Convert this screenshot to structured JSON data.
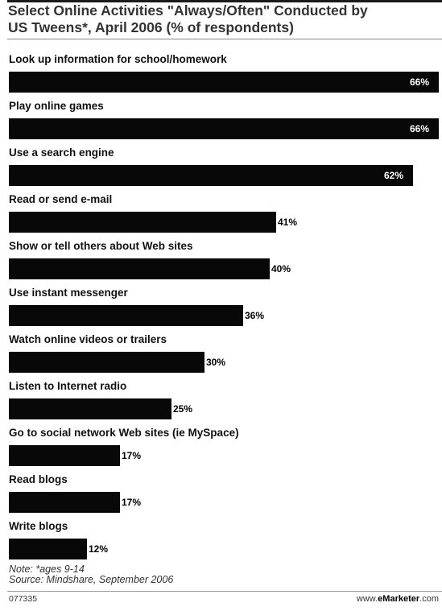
{
  "chart_data": {
    "type": "bar",
    "orientation": "horizontal",
    "title": "Select Online Activities \"Always/Often\" Conducted by\nUS Tweens*, April 2006 (% of respondents)",
    "categories": [
      "Look up information for school/homework",
      "Play online games",
      "Use a search engine",
      "Read or send e-mail",
      "Show or tell others about Web sites",
      "Use instant messenger",
      "Watch online videos or trailers",
      "Listen to Internet radio",
      "Go to social network Web sites (ie MySpace)",
      "Read blogs",
      "Write blogs"
    ],
    "values": [
      66,
      66,
      62,
      41,
      40,
      36,
      30,
      25,
      17,
      17,
      12
    ],
    "value_labels": [
      "66%",
      "66%",
      "62%",
      "41%",
      "40%",
      "36%",
      "30%",
      "25%",
      "17%",
      "17%",
      "12%"
    ],
    "xlim": [
      0,
      66
    ],
    "grid": false,
    "bar_color": "#080808"
  },
  "notes": {
    "line1": "Note: *ages 9-14",
    "line2": "Source: Mindshare, September 2006"
  },
  "footer": {
    "id": "077335",
    "site_prefix": "www.",
    "site_brand": "eMarketer",
    "site_suffix": ".com"
  }
}
